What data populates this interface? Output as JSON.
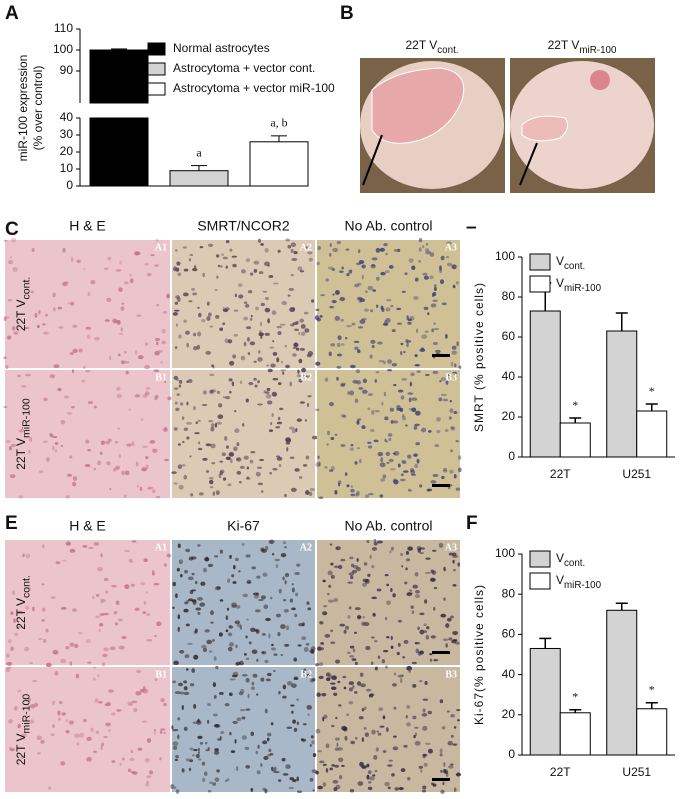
{
  "panel_labels": [
    "A",
    "B",
    "C",
    "–",
    "E",
    "F"
  ],
  "chart_data": [
    {
      "type": "bar",
      "ylabel_lines": [
        "miR-100 expression",
        "(% over control)"
      ],
      "categories": [
        null,
        null,
        null
      ],
      "values": [
        100,
        9,
        26
      ],
      "errors": [
        0.5,
        3,
        3.5
      ],
      "colors": [
        "#000000",
        "#d3d3d3",
        "#ffffff"
      ],
      "legend": [
        "Normal astrocytes",
        "Astrocytoma + vector cont.",
        "Astrocytoma + vector miR-100"
      ],
      "annotations": [
        null,
        "a",
        "a, b"
      ],
      "ylim": [
        0,
        110
      ],
      "ybreak": [
        40,
        90
      ],
      "yticks": [
        0,
        10,
        20,
        30,
        40,
        90,
        100,
        110
      ]
    },
    {
      "type": "bar",
      "ylabel": "SMRT (% positive cells)",
      "categories": [
        "22T",
        "U251"
      ],
      "series": [
        {
          "name": "V",
          "subscript": "cont.",
          "color": "#d3d3d3",
          "values": [
            73,
            63
          ],
          "errors": [
            14,
            9
          ]
        },
        {
          "name": "V",
          "subscript": "miR-100",
          "color": "#ffffff",
          "values": [
            17,
            23
          ],
          "errors": [
            2.5,
            3.5
          ],
          "annotations": [
            "*",
            "*"
          ]
        }
      ],
      "ylim": [
        0,
        100
      ],
      "yticks": [
        0,
        20,
        40,
        60,
        80,
        100
      ]
    },
    {
      "type": "bar",
      "ylabel": "Ki-67(% positive cells)",
      "categories": [
        "22T",
        "U251"
      ],
      "series": [
        {
          "name": "V",
          "subscript": "cont.",
          "color": "#d3d3d3",
          "values": [
            53,
            72
          ],
          "errors": [
            5,
            3.5
          ]
        },
        {
          "name": "V",
          "subscript": "miR-100",
          "color": "#ffffff",
          "values": [
            21,
            23
          ],
          "errors": [
            1.5,
            3
          ],
          "annotations": [
            "*",
            "*"
          ]
        }
      ],
      "ylim": [
        0,
        100
      ],
      "yticks": [
        0,
        20,
        40,
        60,
        80,
        100
      ]
    }
  ],
  "panel_b": {
    "images": [
      {
        "label": "22T V",
        "subscript": "cont."
      },
      {
        "label": "22T V",
        "subscript": "miR-100"
      }
    ]
  },
  "panel_c": {
    "columns": [
      "H & E",
      "SMRT/NCOR2",
      "No Ab. control"
    ],
    "rows": [
      {
        "label": "22T V",
        "subscript": "cont."
      },
      {
        "label": "22T V",
        "subscript": "miR-100"
      }
    ],
    "tiles": [
      [
        "A1",
        "A2",
        "A3"
      ],
      [
        "B1",
        "B2",
        "B3"
      ]
    ]
  },
  "panel_e": {
    "columns": [
      "H & E",
      "Ki-67",
      "No Ab. control"
    ],
    "rows": [
      {
        "label": "22T V",
        "subscript": "cont."
      },
      {
        "label": "22T V",
        "subscript": "miR-100"
      }
    ],
    "tiles": [
      [
        "A1",
        "A2",
        "A3"
      ],
      [
        "B1",
        "B2",
        "B3"
      ]
    ]
  }
}
